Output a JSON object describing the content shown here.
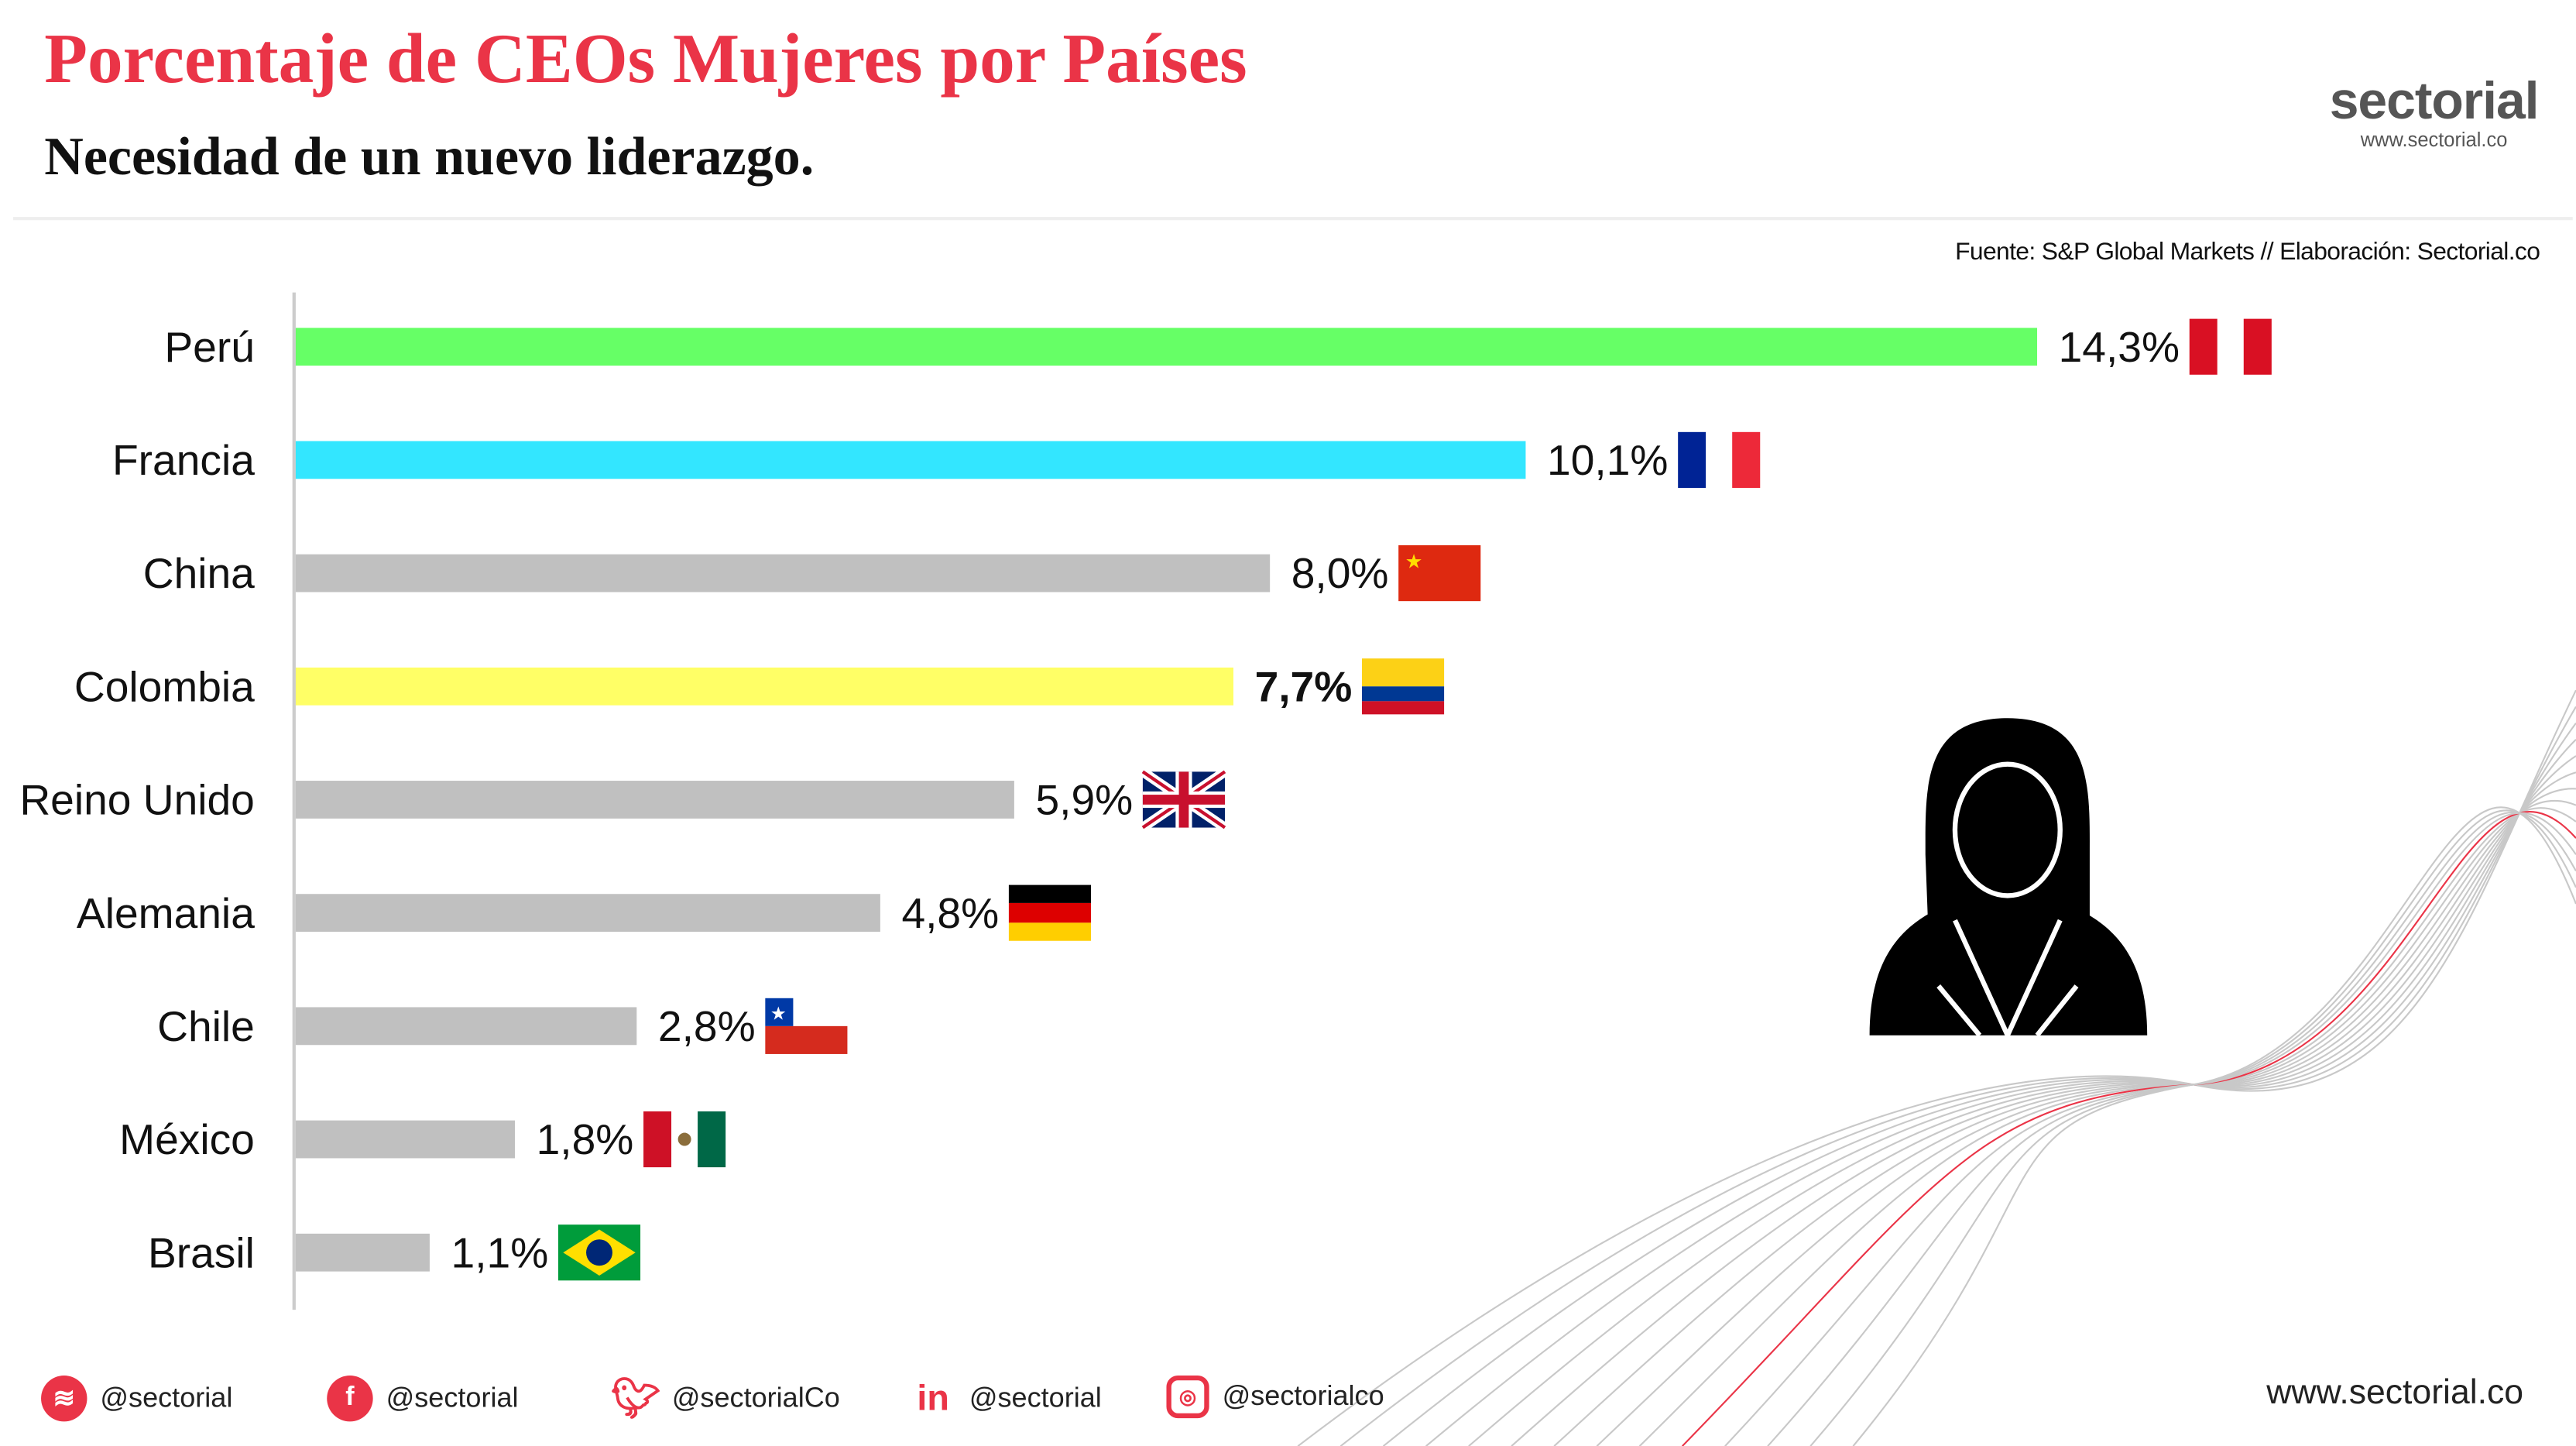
{
  "header": {
    "title": "Porcentaje de CEOs Mujeres por Países",
    "subtitle": "Necesidad de un nuevo liderazgo.",
    "logo_name": "sectorial",
    "logo_url": "www.sectorial.co",
    "source": "Fuente: S&P Global Markets // Elaboración: Sectorial.co"
  },
  "chart_data": {
    "type": "bar",
    "orientation": "horizontal",
    "categories": [
      "Perú",
      "Francia",
      "China",
      "Colombia",
      "Reino Unido",
      "Alemania",
      "Chile",
      "México",
      "Brasil"
    ],
    "values": [
      14.3,
      10.1,
      8.0,
      7.7,
      5.9,
      4.8,
      2.8,
      1.8,
      1.1
    ],
    "value_labels": [
      "14,3%",
      "10,1%",
      "8,0%",
      "7,7%",
      "5,9%",
      "4,8%",
      "2,8%",
      "1,8%",
      "1,1%"
    ],
    "colors": [
      "#66ff66",
      "#33e6ff",
      "#c0c0c0",
      "#ffff66",
      "#c0c0c0",
      "#c0c0c0",
      "#c0c0c0",
      "#c0c0c0",
      "#c0c0c0"
    ],
    "highlight": "Colombia",
    "flags": [
      "peru",
      "france",
      "china",
      "colombia",
      "uk",
      "germany",
      "chile",
      "mexico",
      "brazil"
    ],
    "xlim": [
      0,
      14.3
    ],
    "grid": false
  },
  "footer": {
    "social": [
      {
        "icon": "spotify-icon",
        "handle": "@sectorial"
      },
      {
        "icon": "facebook-icon",
        "handle": "@sectorial"
      },
      {
        "icon": "twitter-icon",
        "handle": "@sectorialCo"
      },
      {
        "icon": "linkedin-icon",
        "handle": "@sectorial"
      },
      {
        "icon": "instagram-icon",
        "handle": "@sectorialco"
      }
    ],
    "website": "www.sectorial.co"
  },
  "colors": {
    "accent": "#ea3447"
  }
}
